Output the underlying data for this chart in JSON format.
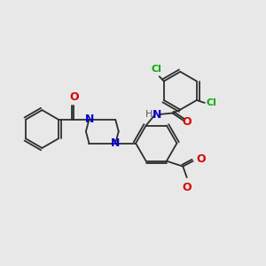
{
  "background_color": "#e8e8e8",
  "bond_color": "#2d2d2d",
  "atom_colors": {
    "N": "#0000cc",
    "O": "#dd0000",
    "Cl": "#00aa00",
    "H": "#555555",
    "C": "#2d2d2d"
  }
}
